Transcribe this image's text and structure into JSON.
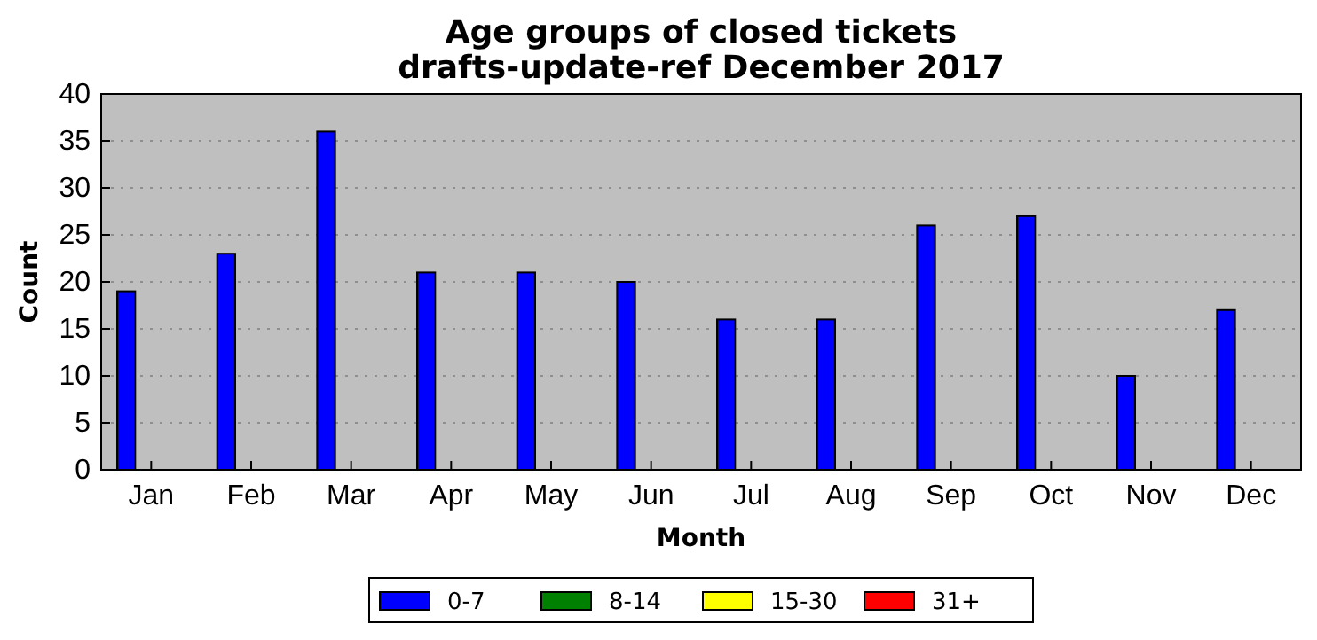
{
  "chart_data": {
    "type": "bar",
    "title": "Age groups of closed tickets\ndrafts-update-ref December 2017",
    "xlabel": "Month",
    "ylabel": "Count",
    "categories": [
      "Jan",
      "Feb",
      "Mar",
      "Apr",
      "May",
      "Jun",
      "Jul",
      "Aug",
      "Sep",
      "Oct",
      "Nov",
      "Dec"
    ],
    "series": [
      {
        "name": "0-7",
        "color": "#0000ff",
        "values": [
          19,
          23,
          36,
          21,
          21,
          20,
          16,
          16,
          26,
          27,
          10,
          17
        ]
      },
      {
        "name": "8-14",
        "color": "#008000",
        "values": [
          0,
          0,
          0,
          0,
          0,
          0,
          0,
          0,
          0,
          0,
          0,
          0
        ]
      },
      {
        "name": "15-30",
        "color": "#ffff00",
        "values": [
          0,
          0,
          0,
          0,
          0,
          0,
          0,
          0,
          0,
          0,
          0,
          0
        ]
      },
      {
        "name": "31+",
        "color": "#ff0000",
        "values": [
          0,
          0,
          0,
          0,
          0,
          0,
          0,
          0,
          0,
          0,
          0,
          0
        ]
      }
    ],
    "ylim": [
      0,
      40
    ],
    "yticks": [
      0,
      5,
      10,
      15,
      20,
      25,
      30,
      35,
      40
    ],
    "grid": "y",
    "legend": "bottom"
  }
}
